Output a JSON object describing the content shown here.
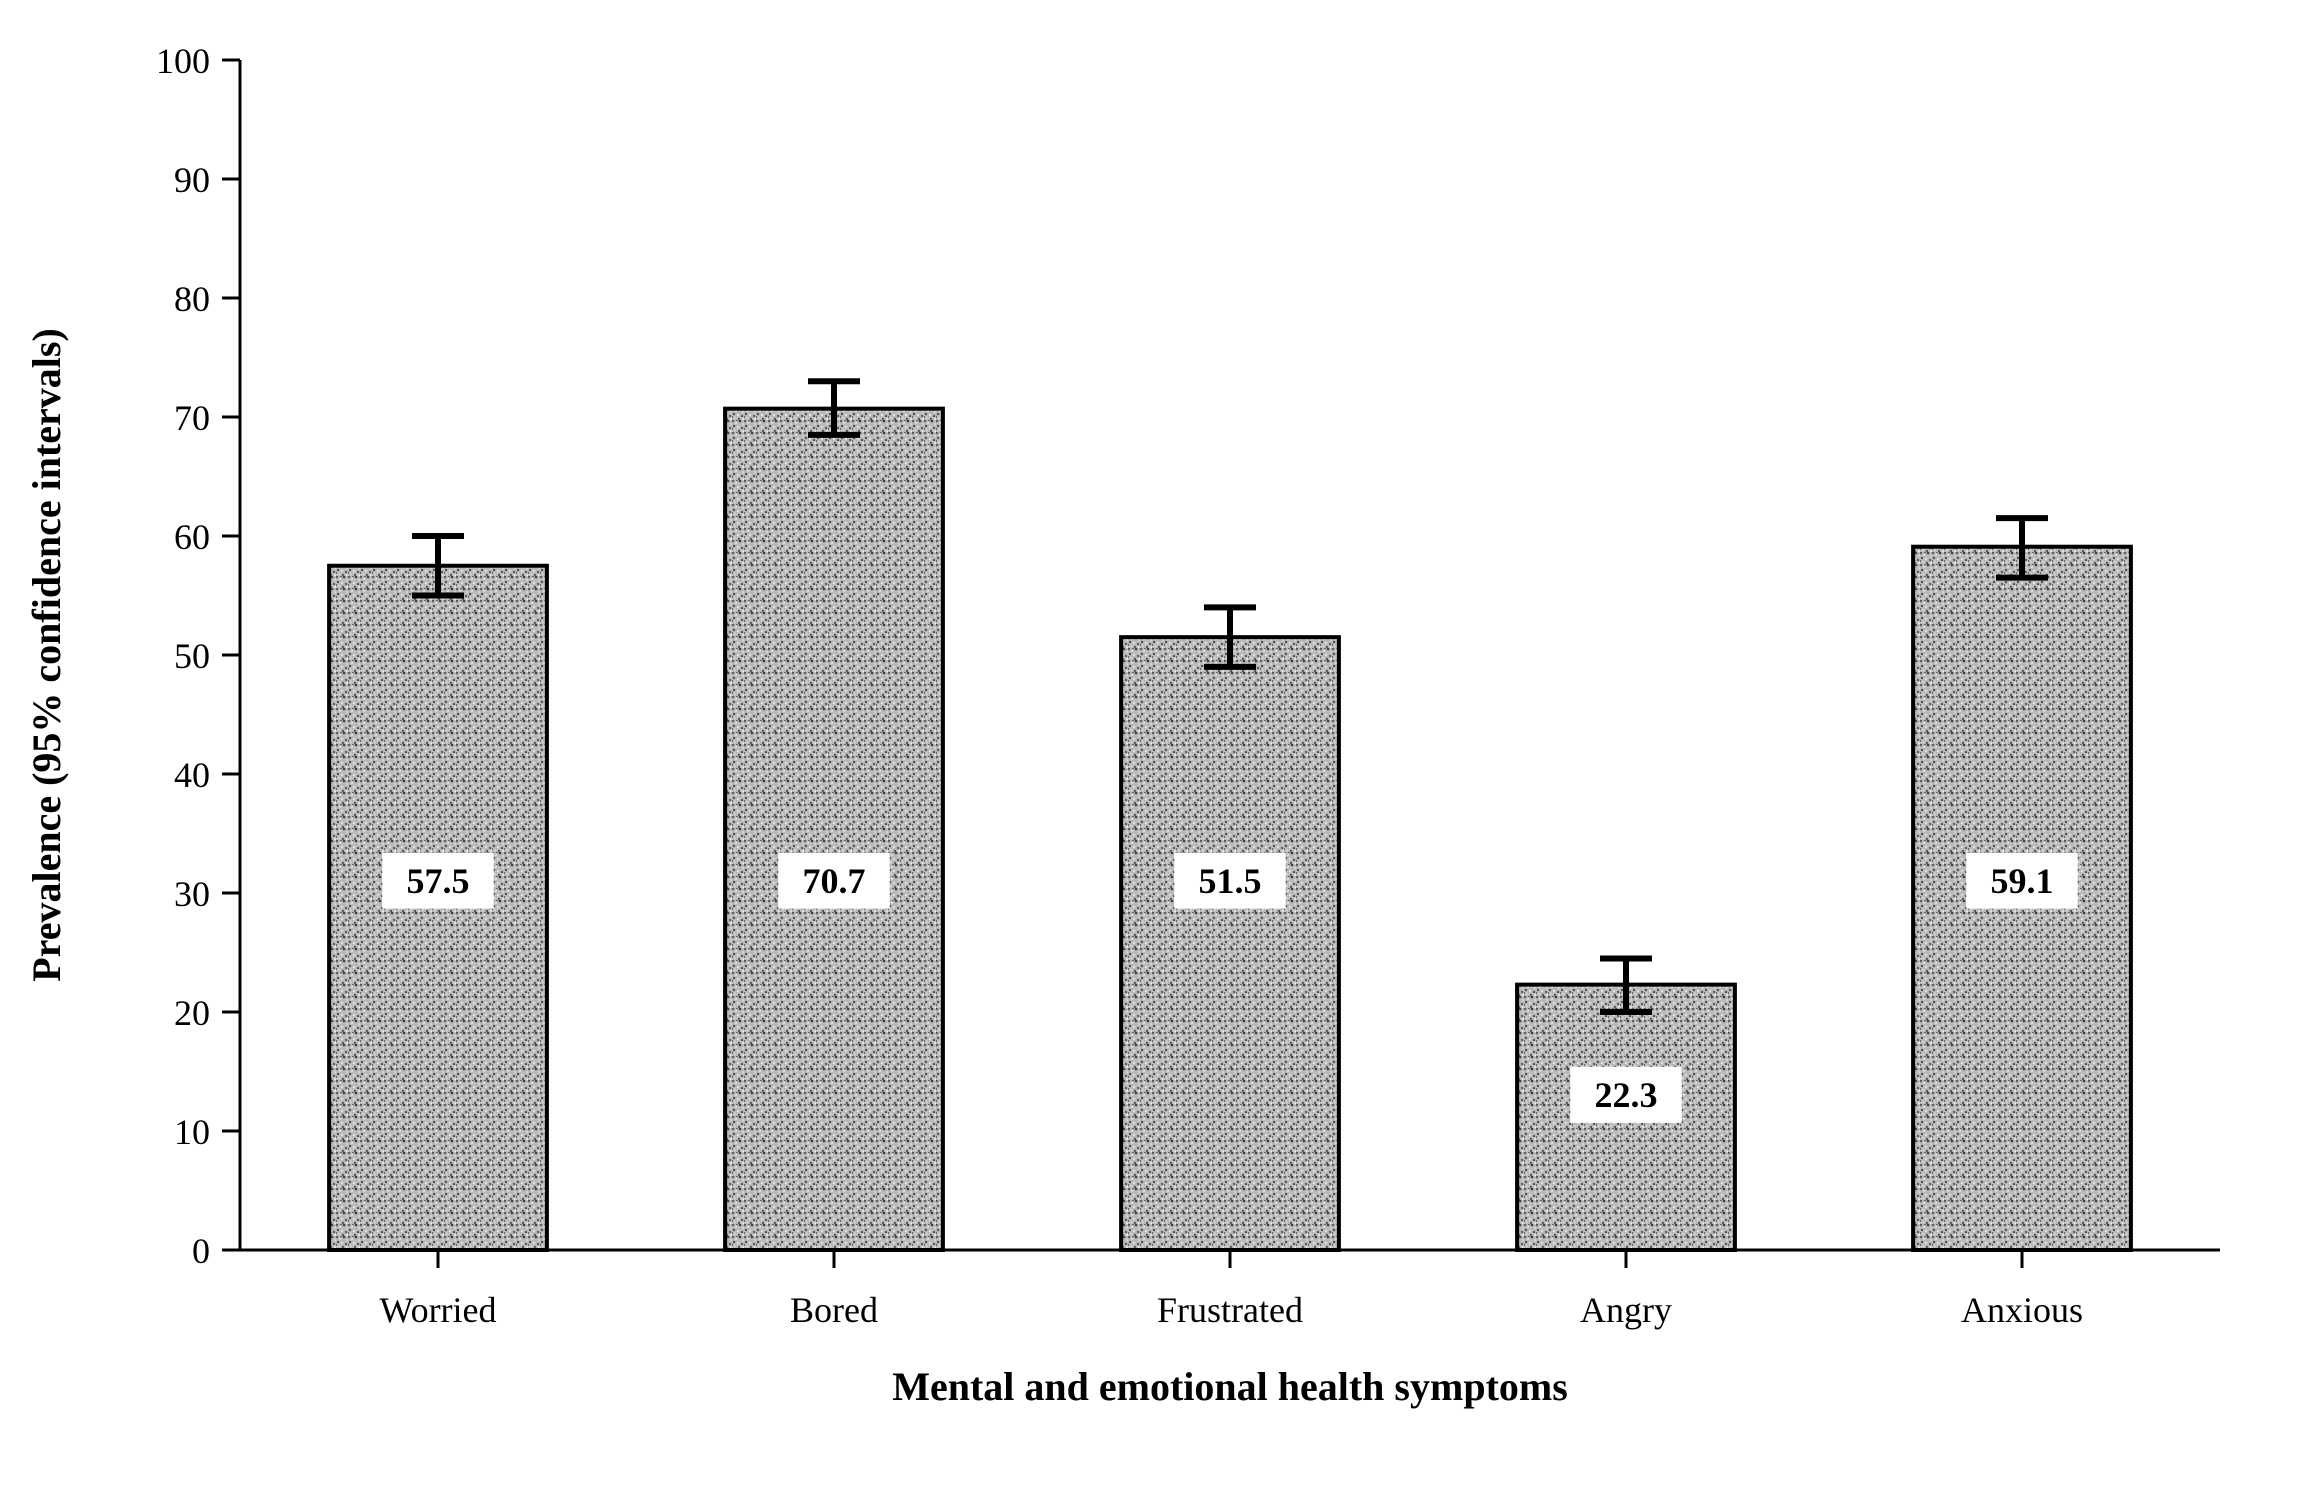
{
  "chart": {
    "type": "bar",
    "background_color": "#ffffff",
    "axis_color": "#000000",
    "font_family": "Georgia, serif",
    "ylabel": "Prevalence (95% confidence intervals)",
    "xlabel": "Mental and emotional health symptoms",
    "ylabel_fontsize": 40,
    "xlabel_fontsize": 40,
    "tick_fontsize": 36,
    "value_label_fontsize": 36,
    "ylim": [
      0,
      100
    ],
    "ytick_step": 10,
    "yticks": [
      "0",
      "10",
      "20",
      "30",
      "40",
      "50",
      "60",
      "70",
      "80",
      "90",
      "100"
    ],
    "categories": [
      "Worried",
      "Bored",
      "Frustrated",
      "Angry",
      "Anxious"
    ],
    "values": [
      57.5,
      70.7,
      51.5,
      22.3,
      59.1
    ],
    "error_low": [
      55.0,
      68.5,
      49.0,
      20.0,
      56.5
    ],
    "error_high": [
      60.0,
      73.0,
      54.0,
      24.5,
      61.5
    ],
    "bar_fill_pattern": "noise",
    "bar_border_color": "#000000",
    "bar_border_width": 4,
    "error_bar_color": "#000000",
    "error_bar_width": 6,
    "error_cap_width": 26,
    "value_label_bg": "#ffffff",
    "value_label_color": "#000000"
  }
}
